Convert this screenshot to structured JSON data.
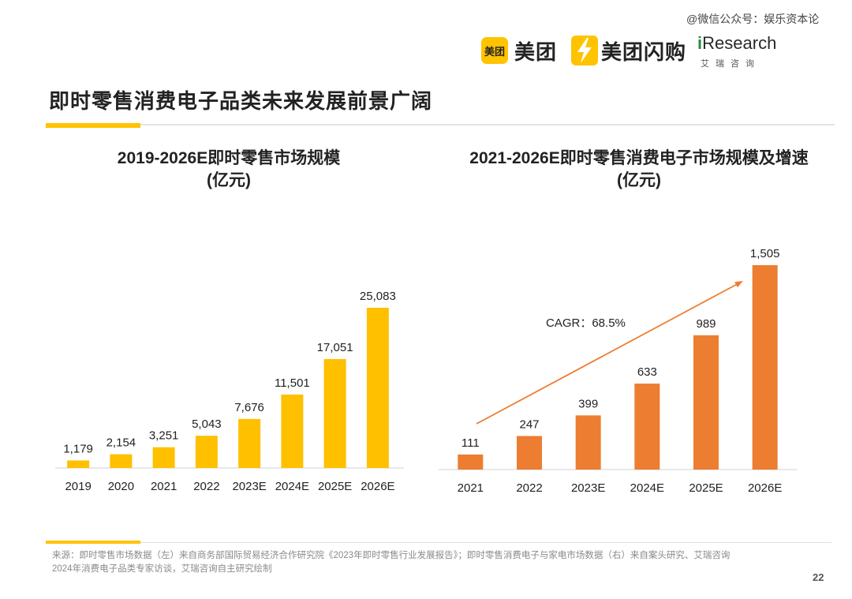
{
  "header": {
    "watermark": "@微信公众号：娱乐资本论",
    "logos": {
      "meituan_box": "美团",
      "meituan_text": "美团",
      "flash_text": "美团闪购",
      "iresearch_i": "i",
      "iresearch_rest": "Research",
      "iresearch_sub": "艾瑞咨询",
      "brand_yellow": "#FFC300",
      "iresearch_green": "#2a8d3a"
    },
    "page_title": "即时零售消费电子品类未来发展前景广阔"
  },
  "chart_data": [
    {
      "type": "bar",
      "title": "2019-2026E即时零售市场规模",
      "subtitle": "(亿元)",
      "categories": [
        "2019",
        "2020",
        "2021",
        "2022",
        "2023E",
        "2024E",
        "2025E",
        "2026E"
      ],
      "values": [
        1179,
        2154,
        3251,
        5043,
        7676,
        11501,
        17051,
        25083
      ],
      "value_labels": [
        "1,179",
        "2,154",
        "3,251",
        "5,043",
        "7,676",
        "11,501",
        "17,051",
        "25,083"
      ],
      "color": "#FFC000",
      "ylim": [
        0,
        25083
      ],
      "grid": false
    },
    {
      "type": "bar",
      "title": "2021-2026E即时零售消费电子市场规模及增速",
      "subtitle": "(亿元)",
      "categories": [
        "2021",
        "2022",
        "2023E",
        "2024E",
        "2025E",
        "2026E"
      ],
      "values": [
        111,
        247,
        399,
        633,
        989,
        1505
      ],
      "value_labels": [
        "111",
        "247",
        "399",
        "633",
        "989",
        "1,505"
      ],
      "color": "#ED7D31",
      "ylim": [
        0,
        1505
      ],
      "grid": false,
      "annotation": "CAGR：68.5%",
      "trend_arrow_color": "#ED7D31"
    }
  ],
  "footer": {
    "source_line1": "来源：即时零售市场数据（左）来自商务部国际贸易经济合作研究院《2023年即时零售行业发展报告》；即时零售消费电子与家电市场数据（右）来自案头研究、艾瑞咨询",
    "source_line2": "2024年消费电子品类专家访谈，艾瑞咨询自主研究绘制",
    "page_number": "22"
  }
}
